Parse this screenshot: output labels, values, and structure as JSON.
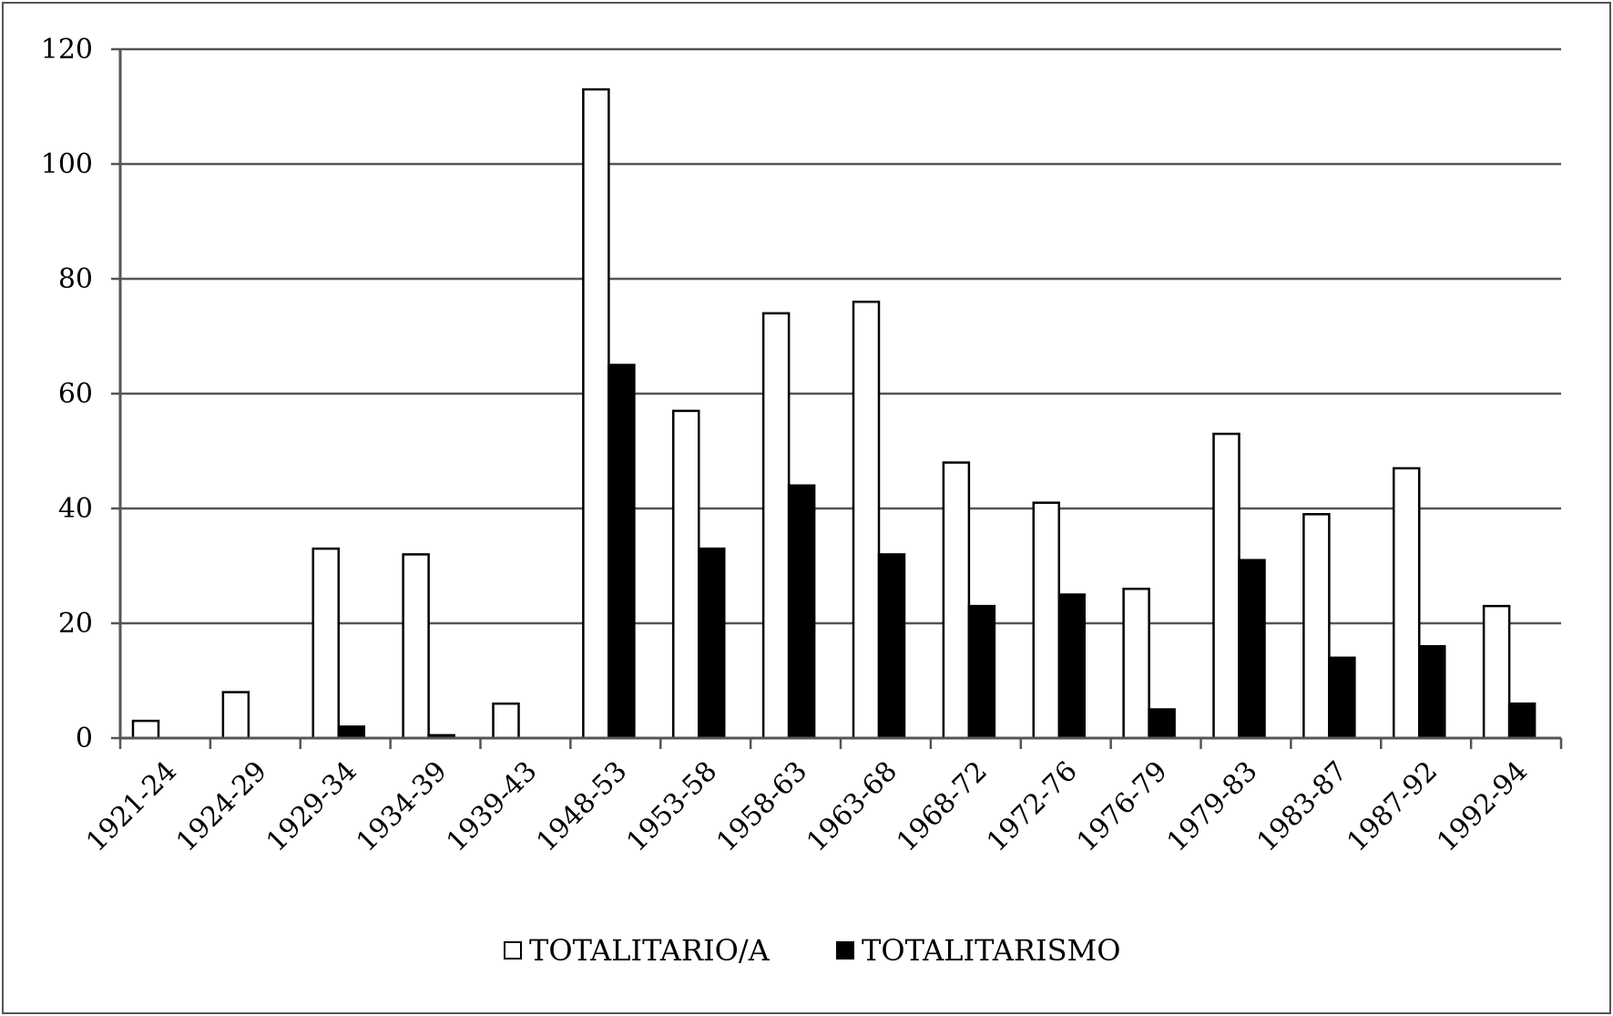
{
  "chart_data": {
    "type": "bar",
    "title": "",
    "xlabel": "",
    "ylabel": "",
    "ylim": [
      0,
      120
    ],
    "yticks": [
      0,
      20,
      40,
      60,
      80,
      100,
      120
    ],
    "grid": true,
    "legend_position": "bottom",
    "categories": [
      "1921-24",
      "1924-29",
      "1929-34",
      "1934-39",
      "1939-43",
      "1948-53",
      "1953-58",
      "1958-63",
      "1963-68",
      "1968-72",
      "1972-76",
      "1976-79",
      "1979-83",
      "1983-87",
      "1987-92",
      "1992-94"
    ],
    "series": [
      {
        "name": "TOTALITARIO/A",
        "color": "#ffffff",
        "values": [
          3,
          8,
          33,
          32,
          6,
          113,
          57,
          74,
          76,
          48,
          41,
          26,
          53,
          39,
          47,
          23
        ]
      },
      {
        "name": "TOTALITARISMO",
        "color": "#000000",
        "values": [
          0,
          0,
          2,
          0.5,
          0,
          65,
          33,
          44,
          32,
          23,
          25,
          5,
          31,
          14,
          16,
          6
        ]
      }
    ]
  }
}
